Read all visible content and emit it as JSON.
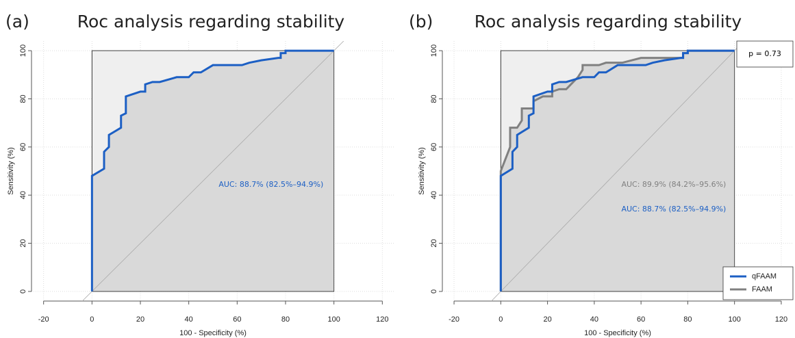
{
  "chart_data": [
    {
      "type": "line",
      "panel_label": "(a)",
      "title": "Roc analysis regarding stability",
      "xlabel": "100 - Specificity (%)",
      "ylabel": "Sensitivity (%)",
      "xlim": [
        -25,
        125
      ],
      "ylim": [
        -4,
        104
      ],
      "xticks": [
        -20,
        0,
        20,
        40,
        60,
        80,
        100,
        120
      ],
      "yticks": [
        0,
        20,
        40,
        60,
        80,
        100
      ],
      "grid": true,
      "series": [
        {
          "color": "#1c5fc4",
          "x": [
            0,
            0,
            5,
            5,
            7,
            7,
            12,
            12,
            14,
            14,
            20,
            22,
            22,
            25,
            28,
            35,
            40,
            42,
            45,
            50,
            62,
            65,
            70,
            77,
            78,
            78,
            80,
            80,
            100
          ],
          "values": [
            0,
            48,
            51,
            58,
            60,
            65,
            68,
            73,
            74,
            81,
            83,
            83,
            86,
            87,
            87,
            89,
            89,
            91,
            91,
            94,
            94,
            95,
            96,
            97,
            97,
            99,
            99,
            100,
            100
          ]
        }
      ],
      "annotations": [
        {
          "text": "AUC: 88.7% (82.5%–94.9%)",
          "color": "#1c5fc4"
        }
      ]
    },
    {
      "type": "line",
      "panel_label": "(b)",
      "title": "Roc analysis regarding stability",
      "xlabel": "100 - Specificity (%)",
      "ylabel": "Sensitivity (%)",
      "xlim": [
        -25,
        125
      ],
      "ylim": [
        -4,
        104
      ],
      "xticks": [
        -20,
        0,
        20,
        40,
        60,
        80,
        100,
        120
      ],
      "yticks": [
        0,
        20,
        40,
        60,
        80,
        100
      ],
      "grid": true,
      "legend": "bottomright",
      "series": [
        {
          "name": "qFAAM",
          "color": "#1c5fc4",
          "x": [
            0,
            0,
            5,
            5,
            7,
            7,
            12,
            12,
            14,
            14,
            20,
            22,
            22,
            25,
            28,
            35,
            40,
            42,
            45,
            50,
            62,
            65,
            70,
            77,
            78,
            78,
            80,
            80,
            100
          ],
          "values": [
            0,
            48,
            51,
            58,
            60,
            65,
            68,
            73,
            74,
            81,
            83,
            83,
            86,
            87,
            87,
            89,
            89,
            91,
            91,
            94,
            94,
            95,
            96,
            97,
            97,
            99,
            99,
            100,
            100
          ]
        },
        {
          "name": "FAAM",
          "color": "#808080",
          "x": [
            0,
            0,
            2,
            4,
            4,
            7,
            9,
            9,
            14,
            14,
            18,
            22,
            22,
            25,
            28,
            33,
            35,
            35,
            42,
            45,
            52,
            60,
            78,
            78,
            80,
            80,
            100
          ],
          "values": [
            0,
            50,
            55,
            60,
            68,
            68,
            71,
            76,
            76,
            79,
            81,
            81,
            83,
            84,
            84,
            89,
            92,
            94,
            94,
            95,
            95,
            97,
            97,
            99,
            99,
            100,
            100
          ]
        }
      ],
      "annotations": [
        {
          "text": "AUC: 89.9% (84.2%–95.6%)",
          "color": "#808080"
        },
        {
          "text": "AUC: 88.7% (82.5%–94.9%)",
          "color": "#1c5fc4"
        },
        {
          "text": "p = 0.73",
          "color": "#000000"
        }
      ]
    }
  ]
}
